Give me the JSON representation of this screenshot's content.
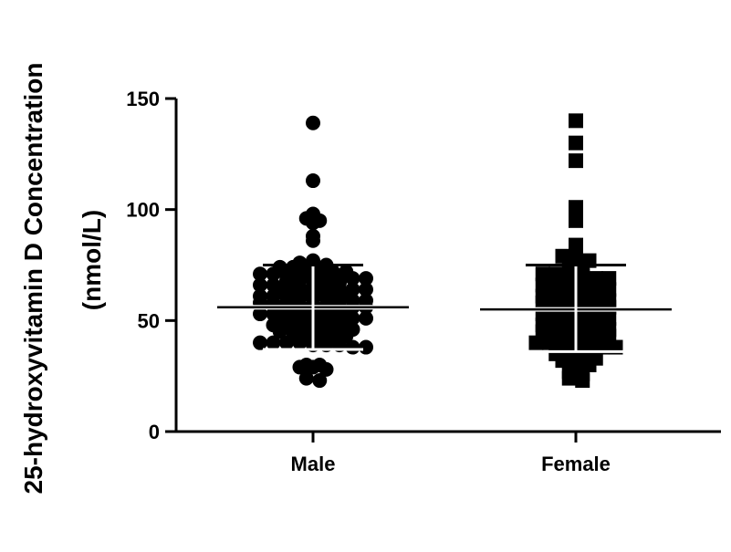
{
  "chart_data": {
    "type": "scatter",
    "title": "",
    "xlabel": "",
    "ylabel_line1": "25-hydroxyvitamin D Concentration",
    "ylabel_line2": "(nmol/L)",
    "ylim": [
      0,
      150
    ],
    "yticks": [
      0,
      50,
      100,
      150
    ],
    "categories": [
      "Male",
      "Female"
    ],
    "grid": false,
    "legend": "none",
    "series": [
      {
        "category": "Male",
        "marker": "circle",
        "color": "#000000",
        "mean": 56,
        "sd_upper": 75,
        "sd_lower": 37,
        "values": [
          139,
          113,
          98,
          96,
          95,
          94,
          88,
          86,
          77,
          76,
          75,
          75,
          74,
          74,
          73,
          73,
          72,
          72,
          71,
          71,
          70,
          70,
          70,
          70,
          69,
          69,
          69,
          68,
          68,
          68,
          67,
          67,
          66,
          66,
          66,
          65,
          65,
          65,
          64,
          64,
          64,
          63,
          63,
          63,
          62,
          62,
          62,
          61,
          61,
          61,
          60,
          60,
          60,
          59,
          59,
          59,
          58,
          58,
          58,
          57,
          57,
          57,
          56,
          56,
          56,
          55,
          55,
          55,
          54,
          54,
          54,
          53,
          53,
          53,
          52,
          52,
          52,
          51,
          51,
          51,
          50,
          50,
          50,
          49,
          49,
          49,
          48,
          48,
          48,
          47,
          47,
          46,
          46,
          45,
          45,
          44,
          44,
          43,
          43,
          42,
          42,
          41,
          41,
          40,
          40,
          40,
          40,
          39,
          39,
          39,
          38,
          38,
          30,
          30,
          29,
          29,
          28,
          24,
          23
        ]
      },
      {
        "category": "Female",
        "marker": "square",
        "color": "#000000",
        "mean": 55,
        "sd_upper": 75,
        "sd_lower": 36,
        "values": [
          140,
          130,
          122,
          101,
          100,
          95,
          84,
          80,
          79,
          78,
          77,
          76,
          75,
          72,
          71,
          71,
          70,
          70,
          69,
          69,
          68,
          68,
          67,
          67,
          66,
          66,
          65,
          65,
          64,
          64,
          63,
          63,
          62,
          62,
          61,
          61,
          60,
          60,
          59,
          59,
          58,
          58,
          57,
          57,
          56,
          56,
          55,
          55,
          54,
          54,
          53,
          53,
          52,
          52,
          51,
          51,
          50,
          50,
          49,
          49,
          48,
          48,
          47,
          47,
          46,
          46,
          45,
          45,
          44,
          44,
          43,
          43,
          42,
          42,
          41,
          41,
          40,
          40,
          40,
          39,
          39,
          38,
          38,
          37,
          37,
          36,
          35,
          34,
          33,
          33,
          32,
          31,
          30,
          28,
          27,
          26,
          24,
          23
        ]
      }
    ]
  }
}
